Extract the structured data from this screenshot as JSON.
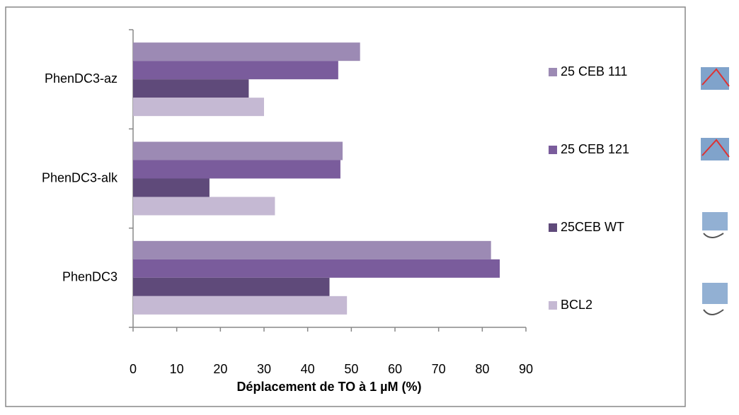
{
  "chart_data": {
    "type": "bar",
    "orientation": "horizontal",
    "x_label": "Déplacement de TO à 1 µM (%)",
    "categories": [
      "PhenDC3",
      "PhenDC3-alk",
      "PhenDC3-az"
    ],
    "series": [
      {
        "name": "25 CEB 111",
        "color": "#9c8ab4",
        "values": [
          82,
          48,
          52
        ]
      },
      {
        "name": "25 CEB 121",
        "color": "#7a5c9c",
        "values": [
          84,
          47.5,
          47
        ]
      },
      {
        "name": "25CEB WT",
        "color": "#5f4a7a",
        "values": [
          45,
          17.5,
          26.5
        ]
      },
      {
        "name": "BCL2",
        "color": "#c5b9d3",
        "values": [
          49,
          32.5,
          30
        ]
      }
    ],
    "xlim": [
      0,
      90
    ],
    "xticks": [
      0,
      10,
      20,
      30,
      40,
      50,
      60,
      70,
      80,
      90
    ],
    "grid": false
  }
}
